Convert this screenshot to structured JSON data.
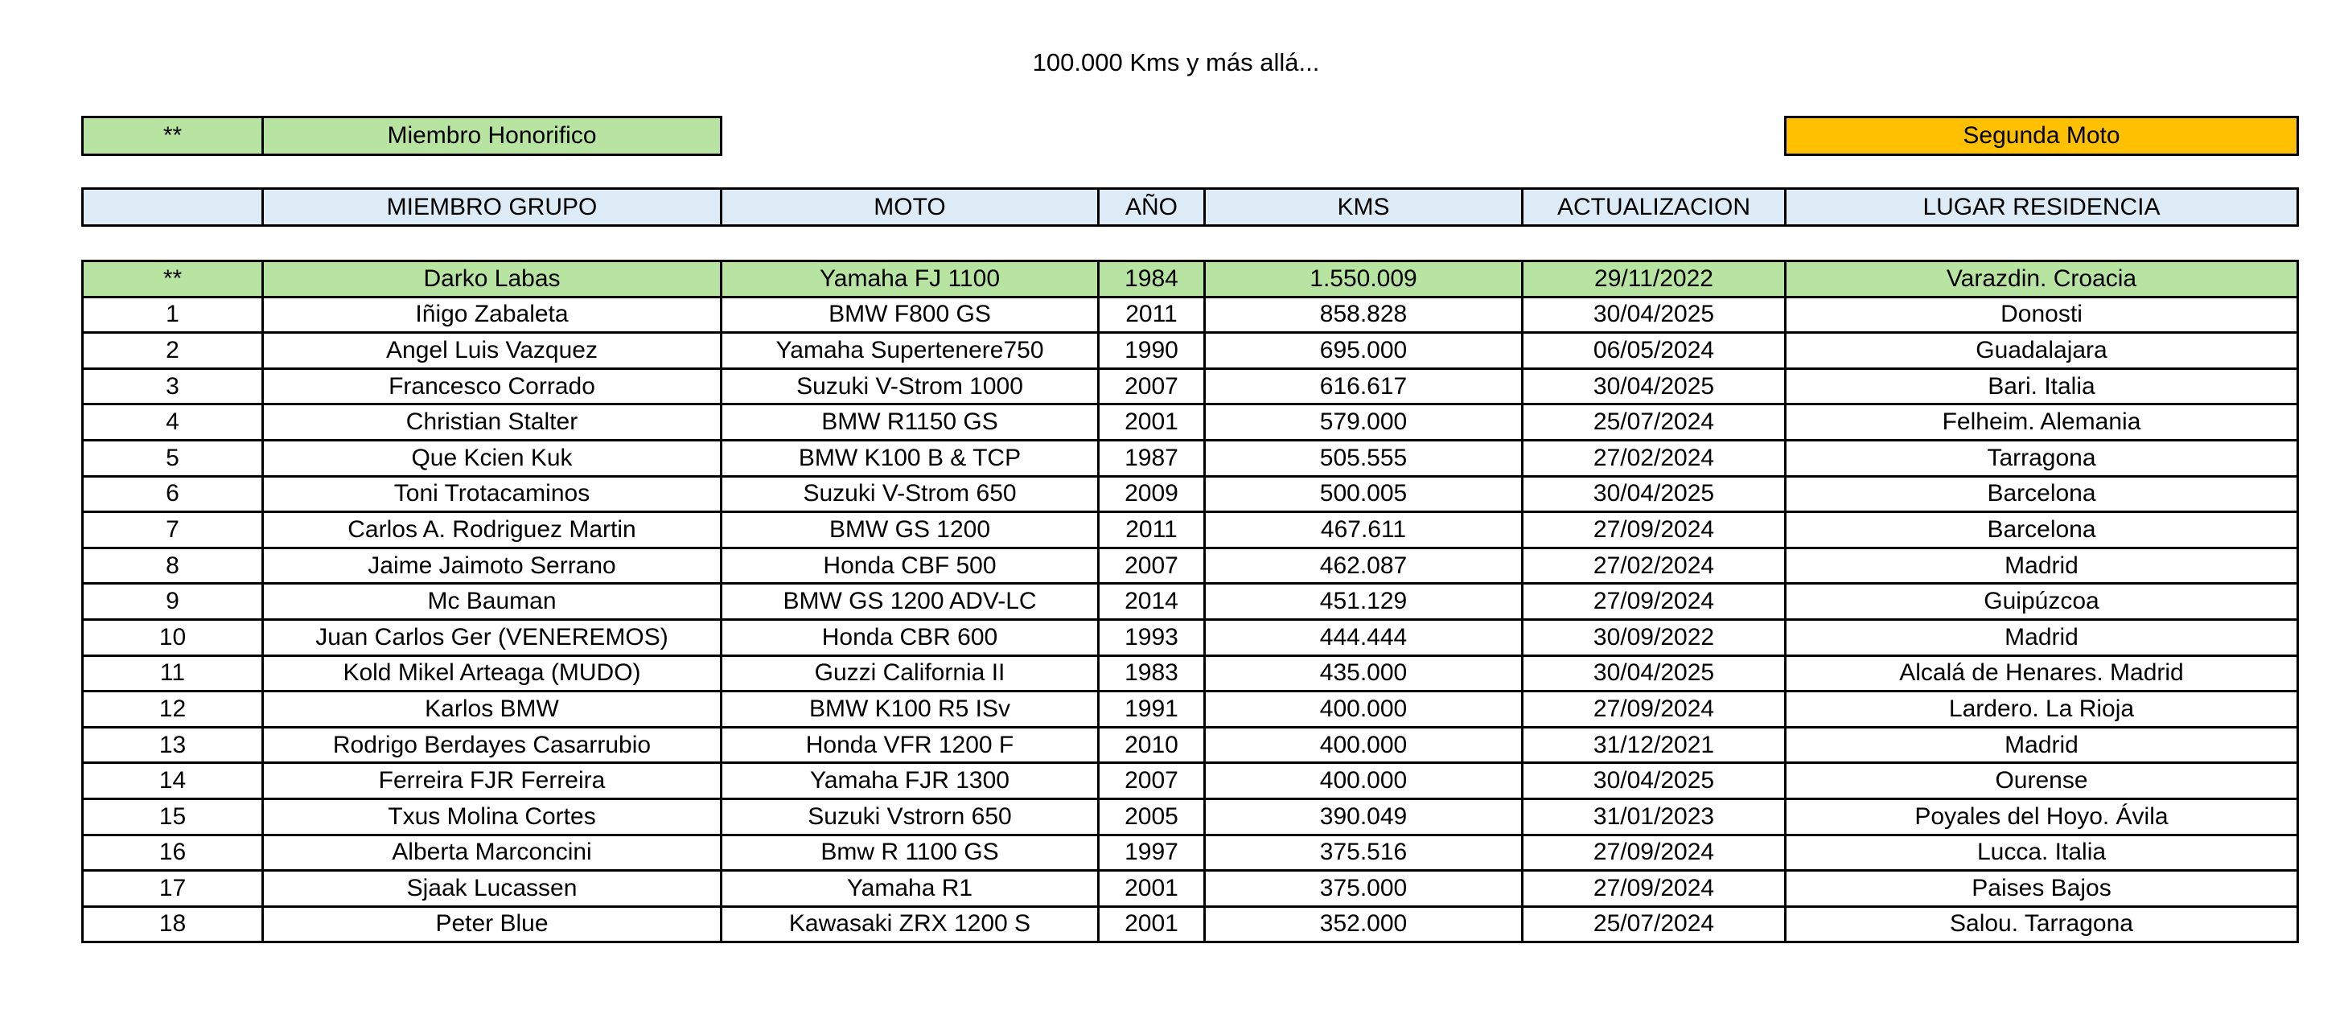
{
  "title": "100.000 Kms y más allá...",
  "legend": {
    "honorary_marker": "**",
    "honorary_label": "Miembro Honorifico",
    "second_bike_label": "Segunda Moto"
  },
  "colors": {
    "honorary_green": "#b7e4a1",
    "second_bike_orange": "#ffc000",
    "header_blue": "#ddebf7"
  },
  "headers": [
    "",
    "MIEMBRO GRUPO",
    "MOTO",
    "AÑO",
    "KMS",
    "ACTUALIZACION",
    "LUGAR RESIDENCIA"
  ],
  "rows": [
    [
      "**",
      "Darko Labas",
      "Yamaha FJ 1100",
      "1984",
      "1.550.009",
      "29/11/2022",
      "Varazdin. Croacia"
    ],
    [
      "1",
      "Iñigo Zabaleta",
      "BMW F800 GS",
      "2011",
      "858.828",
      "30/04/2025",
      "Donosti"
    ],
    [
      "2",
      "Angel Luis Vazquez",
      "Yamaha Supertenere750",
      "1990",
      "695.000",
      "06/05/2024",
      "Guadalajara"
    ],
    [
      "3",
      "Francesco Corrado",
      "Suzuki V-Strom 1000",
      "2007",
      "616.617",
      "30/04/2025",
      "Bari. Italia"
    ],
    [
      "4",
      "Christian Stalter",
      "BMW R1150 GS",
      "2001",
      "579.000",
      "25/07/2024",
      "Felheim. Alemania"
    ],
    [
      "5",
      "Que Kcien Kuk",
      "BMW K100 B & TCP",
      "1987",
      "505.555",
      "27/02/2024",
      "Tarragona"
    ],
    [
      "6",
      "Toni Trotacaminos",
      "Suzuki V-Strom 650",
      "2009",
      "500.005",
      "30/04/2025",
      "Barcelona"
    ],
    [
      "7",
      "Carlos A. Rodriguez Martin",
      "BMW GS 1200",
      "2011",
      "467.611",
      "27/09/2024",
      "Barcelona"
    ],
    [
      "8",
      "Jaime Jaimoto Serrano",
      "Honda CBF 500",
      "2007",
      "462.087",
      "27/02/2024",
      "Madrid"
    ],
    [
      "9",
      "Mc Bauman",
      "BMW GS 1200 ADV-LC",
      "2014",
      "451.129",
      "27/09/2024",
      "Guipúzcoa"
    ],
    [
      "10",
      "Juan Carlos Ger (VENEREMOS)",
      "Honda CBR 600",
      "1993",
      "444.444",
      "30/09/2022",
      "Madrid"
    ],
    [
      "11",
      "Kold Mikel Arteaga (MUDO)",
      "Guzzi California II",
      "1983",
      "435.000",
      "30/04/2025",
      "Alcalá de Henares. Madrid"
    ],
    [
      "12",
      "Karlos BMW",
      "BMW K100 R5 ISv",
      "1991",
      "400.000",
      "27/09/2024",
      "Lardero. La Rioja"
    ],
    [
      "13",
      "Rodrigo Berdayes Casarrubio",
      "Honda VFR 1200 F",
      "2010",
      "400.000",
      "31/12/2021",
      "Madrid"
    ],
    [
      "14",
      "Ferreira FJR Ferreira",
      "Yamaha FJR 1300",
      "2007",
      "400.000",
      "30/04/2025",
      "Ourense"
    ],
    [
      "15",
      "Txus Molina Cortes",
      "Suzuki Vstrorn 650",
      "2005",
      "390.049",
      "31/01/2023",
      "Poyales del Hoyo. Ávila"
    ],
    [
      "16",
      "Alberta Marconcini",
      "Bmw R 1100 GS",
      "1997",
      "375.516",
      "27/09/2024",
      "Lucca. Italia"
    ],
    [
      "17",
      "Sjaak Lucassen",
      "Yamaha R1",
      "2001",
      "375.000",
      "27/09/2024",
      "Paises Bajos"
    ],
    [
      "18",
      "Peter Blue",
      "Kawasaki ZRX 1200 S",
      "2001",
      "352.000",
      "25/07/2024",
      "Salou. Tarragona"
    ]
  ]
}
